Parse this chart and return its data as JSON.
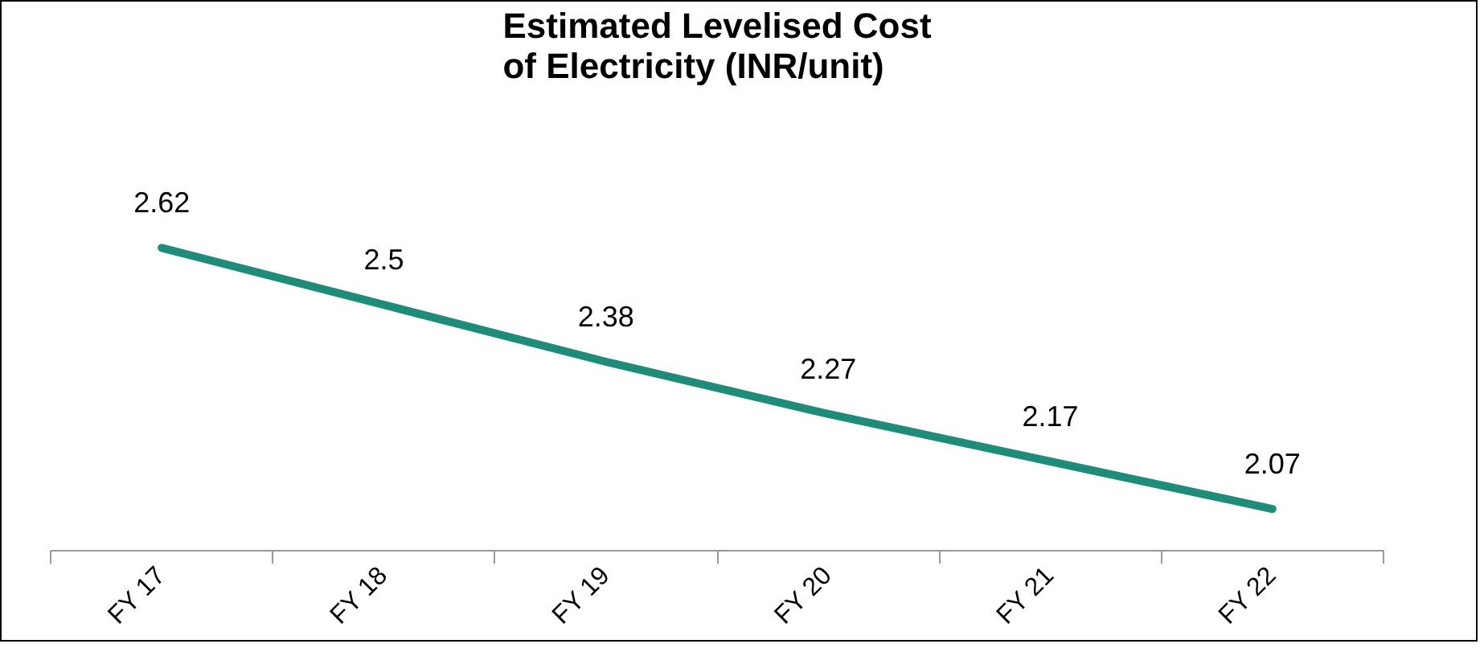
{
  "chart_data": {
    "type": "line",
    "title": "Estimated Levelised Cost\nof Electricity (INR/unit)",
    "categories": [
      "FY 17",
      "FY 18",
      "FY 19",
      "FY 20",
      "FY 21",
      "FY 22"
    ],
    "series": [
      {
        "color": "#1f8c79",
        "values": [
          2.62,
          2.5,
          2.38,
          2.27,
          2.17,
          2.07
        ]
      }
    ],
    "data_labels": true,
    "marker": "none",
    "line_style": "solid"
  }
}
